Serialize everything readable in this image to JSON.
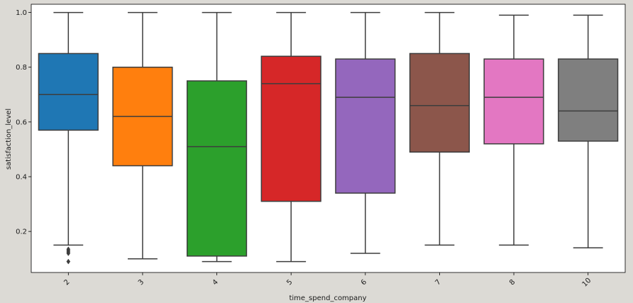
{
  "chart_data": {
    "type": "box",
    "xlabel": "time_spend_company",
    "ylabel": "satisfaction_level",
    "ylim": [
      0.05,
      1.03
    ],
    "yticks": [
      0.2,
      0.4,
      0.6,
      0.8,
      1.0
    ],
    "ytick_labels": [
      "0.2",
      "0.4",
      "0.6",
      "0.8",
      "1.0"
    ],
    "categories": [
      "2",
      "3",
      "4",
      "5",
      "6",
      "7",
      "8",
      "10"
    ],
    "boxes": [
      {
        "category": "2",
        "color": "#1f77b4",
        "whisker_low": 0.15,
        "q1": 0.57,
        "median": 0.7,
        "q3": 0.85,
        "whisker_high": 1.0,
        "outliers": [
          0.09,
          0.12,
          0.125,
          0.13,
          0.135
        ]
      },
      {
        "category": "3",
        "color": "#ff7f0e",
        "whisker_low": 0.1,
        "q1": 0.44,
        "median": 0.62,
        "q3": 0.8,
        "whisker_high": 1.0,
        "outliers": []
      },
      {
        "category": "4",
        "color": "#2ca02c",
        "whisker_low": 0.09,
        "q1": 0.11,
        "median": 0.51,
        "q3": 0.75,
        "whisker_high": 1.0,
        "outliers": []
      },
      {
        "category": "5",
        "color": "#d62728",
        "whisker_low": 0.09,
        "q1": 0.31,
        "median": 0.74,
        "q3": 0.84,
        "whisker_high": 1.0,
        "outliers": []
      },
      {
        "category": "6",
        "color": "#9467bd",
        "whisker_low": 0.12,
        "q1": 0.34,
        "median": 0.69,
        "q3": 0.83,
        "whisker_high": 1.0,
        "outliers": []
      },
      {
        "category": "7",
        "color": "#8c564b",
        "whisker_low": 0.15,
        "q1": 0.49,
        "median": 0.66,
        "q3": 0.85,
        "whisker_high": 1.0,
        "outliers": []
      },
      {
        "category": "8",
        "color": "#e377c2",
        "whisker_low": 0.15,
        "q1": 0.52,
        "median": 0.69,
        "q3": 0.83,
        "whisker_high": 0.99,
        "outliers": []
      },
      {
        "category": "10",
        "color": "#7f7f7f",
        "whisker_low": 0.14,
        "q1": 0.53,
        "median": 0.64,
        "q3": 0.83,
        "whisker_high": 0.99,
        "outliers": []
      }
    ],
    "grid": false,
    "colors": {
      "background": "#dcdad5",
      "plot_bg": "#ffffff",
      "line": "#3d3d3d"
    }
  }
}
